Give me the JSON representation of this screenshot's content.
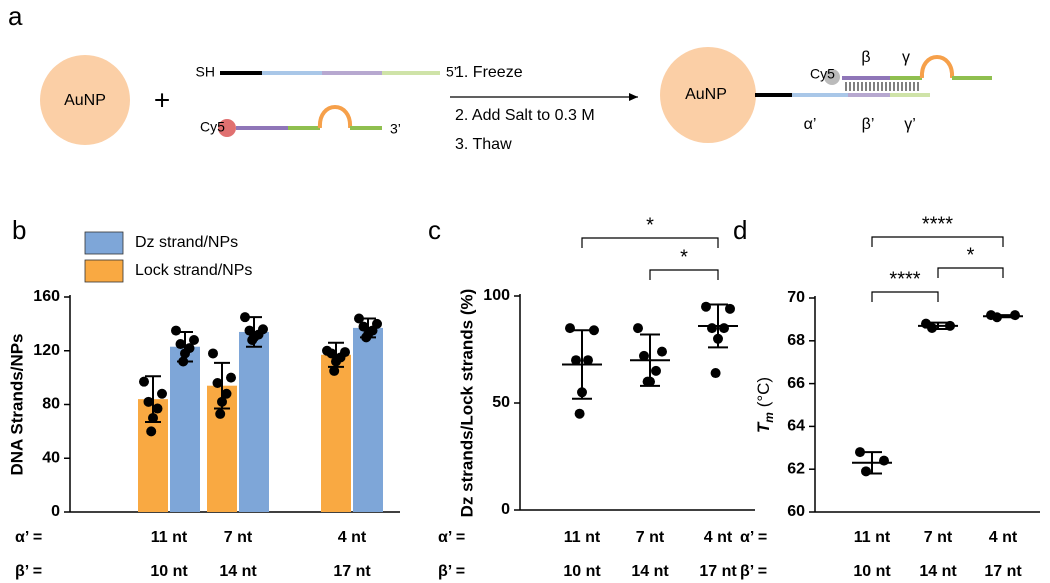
{
  "diagram": {
    "panel": "a",
    "particle": "AuNP",
    "plus": "+",
    "thiol": "SH",
    "end5": "5’",
    "dye": "Cy5",
    "end3": "3’",
    "steps": [
      "1. Freeze",
      "2. Add Salt to 0.3 M",
      "3. Thaw"
    ],
    "product_particle": "AuNP",
    "product_dye": "Cy5",
    "top_labels": [
      "β",
      "γ"
    ],
    "bottom_labels": [
      "α’",
      "β’",
      "γ’"
    ]
  },
  "chart_data": [
    {
      "type": "bar",
      "panel": "b",
      "ylabel": "DNA Strands/NPs",
      "ylim": [
        0,
        160
      ],
      "yticks": [
        0,
        40,
        80,
        120,
        160
      ],
      "categories": [
        "11 nt",
        "7 nt",
        "4 nt"
      ],
      "categories2": [
        "10 nt",
        "14 nt",
        "17 nt"
      ],
      "category_labels": [
        "α’ =",
        "β’ ="
      ],
      "series": [
        {
          "name": "Lock strand/NPs",
          "color": "#f9a942",
          "values": [
            84,
            94,
            117
          ],
          "errors": [
            17,
            17,
            9
          ],
          "points": [
            [
              97,
              88,
              82,
              77,
              70,
              60
            ],
            [
              118,
              100,
              96,
              88,
              82,
              73
            ],
            [
              120,
              119,
              118,
              115,
              112,
              105
            ]
          ]
        },
        {
          "name": "Dz strand/NPs",
          "color": "#7ea6d8",
          "values": [
            123,
            134,
            137
          ],
          "errors": [
            11,
            11,
            7
          ],
          "points": [
            [
              135,
              128,
              125,
              122,
              118,
              112
            ],
            [
              145,
              136,
              135,
              132,
              130,
              128
            ],
            [
              144,
              140,
              138,
              135,
              132,
              130
            ]
          ]
        }
      ]
    },
    {
      "type": "strip",
      "panel": "c",
      "ylabel": "Dz strands/Lock strands (%)",
      "ylim": [
        0,
        100
      ],
      "yticks": [
        0,
        50,
        100
      ],
      "categories": [
        "11 nt",
        "7 nt",
        "4 nt"
      ],
      "categories2": [
        "10 nt",
        "14 nt",
        "17 nt"
      ],
      "category_labels": [
        "α’ =",
        "β’ ="
      ],
      "values": [
        68,
        70,
        86
      ],
      "errors": [
        16,
        12,
        10
      ],
      "points": [
        [
          85,
          84,
          70,
          70,
          55,
          45
        ],
        [
          85,
          74,
          72,
          65,
          60,
          60
        ],
        [
          95,
          94,
          85,
          85,
          80,
          64
        ]
      ],
      "brackets": [
        {
          "from": 0,
          "to": 2,
          "label": "*"
        },
        {
          "from": 1,
          "to": 2,
          "label": "*"
        }
      ]
    },
    {
      "type": "strip",
      "panel": "d",
      "ylabel": [
        "T",
        "m",
        " (°C)"
      ],
      "ylim": [
        60,
        70
      ],
      "yticks": [
        60,
        62,
        64,
        66,
        68,
        70
      ],
      "categories": [
        "11 nt",
        "7 nt",
        "4 nt"
      ],
      "categories2": [
        "10 nt",
        "14 nt",
        "17 nt"
      ],
      "category_labels": [
        "α’ =",
        "β’ ="
      ],
      "values": [
        62.3,
        68.7,
        69.15
      ],
      "errors": [
        0.5,
        0.15,
        0.05
      ],
      "points": [
        [
          62.8,
          62.4,
          61.9
        ],
        [
          68.8,
          68.7,
          68.6
        ],
        [
          69.2,
          69.2,
          69.1
        ]
      ],
      "brackets": [
        {
          "from": 0,
          "to": 2,
          "label": "****"
        },
        {
          "from": 0,
          "to": 1,
          "label": "****"
        },
        {
          "from": 1,
          "to": 2,
          "label": "*"
        }
      ]
    }
  ]
}
